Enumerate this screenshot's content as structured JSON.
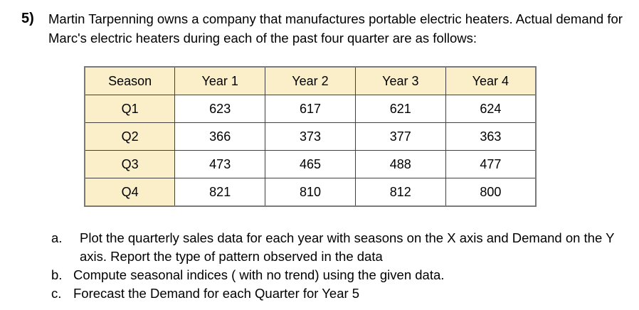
{
  "colors": {
    "page-bg": "#ffffff",
    "text": "#000000",
    "table-fill": "#faefc8",
    "table-border-outer": "#7a7a7a",
    "table-border-inner": "#404040"
  },
  "problem": {
    "number": "5)",
    "statement": "Martin Tarpenning owns a company that manufactures portable electric heaters. Actual demand for Marc's electric heaters during each of the past four quarter are as follows:"
  },
  "table": {
    "columns": [
      "Season",
      "Year 1",
      "Year 2",
      "Year 3",
      "Year 4"
    ],
    "rows": [
      {
        "label": "Q1",
        "values": [
          "623",
          "617",
          "621",
          "624"
        ]
      },
      {
        "label": "Q2",
        "values": [
          "366",
          "373",
          "377",
          "363"
        ]
      },
      {
        "label": "Q3",
        "values": [
          "473",
          "465",
          "488",
          "477"
        ]
      },
      {
        "label": "Q4",
        "values": [
          "821",
          "810",
          "812",
          "800"
        ]
      }
    ]
  },
  "questions": [
    {
      "label": "a.",
      "text": "Plot the quarterly sales data for each year with seasons on the X axis and Demand on the Y axis. Report the type of pattern observed in the data"
    },
    {
      "label": "b.",
      "text": "Compute seasonal indices ( with no trend) using the given data."
    },
    {
      "label": "c.",
      "text": "Forecast the Demand for each Quarter for Year 5"
    }
  ]
}
